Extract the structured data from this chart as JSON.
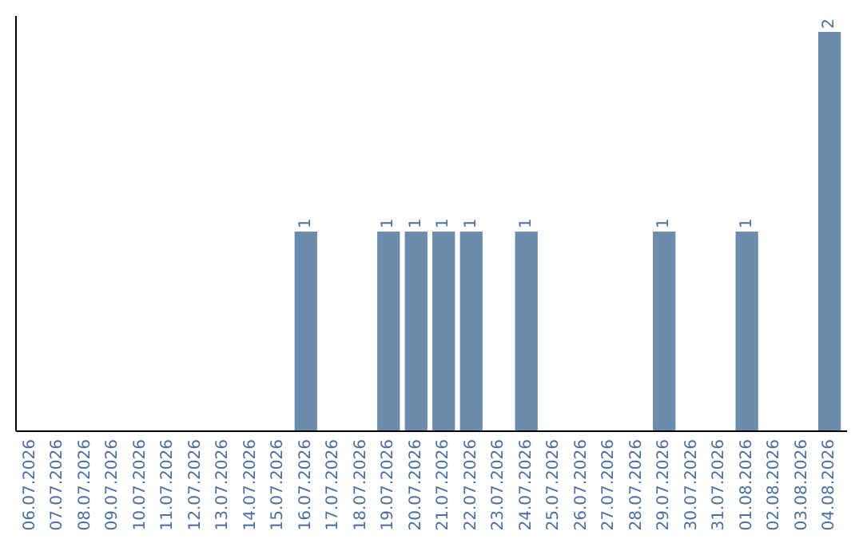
{
  "chart_data": {
    "type": "bar",
    "categories": [
      "06.07.2026",
      "07.07.2026",
      "08.07.2026",
      "09.07.2026",
      "10.07.2026",
      "11.07.2026",
      "12.07.2026",
      "13.07.2026",
      "14.07.2026",
      "15.07.2026",
      "16.07.2026",
      "17.07.2026",
      "18.07.2026",
      "19.07.2026",
      "20.07.2026",
      "21.07.2026",
      "22.07.2026",
      "23.07.2026",
      "24.07.2026",
      "25.07.2026",
      "26.07.2026",
      "27.07.2026",
      "28.07.2026",
      "29.07.2026",
      "30.07.2026",
      "31.07.2026",
      "01.08.2026",
      "02.08.2026",
      "03.08.2026",
      "04.08.2026"
    ],
    "values": [
      0,
      0,
      0,
      0,
      0,
      0,
      0,
      0,
      0,
      0,
      1,
      0,
      0,
      1,
      1,
      1,
      1,
      0,
      1,
      0,
      0,
      0,
      0,
      1,
      0,
      0,
      1,
      0,
      0,
      2
    ],
    "value_labels": [
      null,
      null,
      null,
      null,
      null,
      null,
      null,
      null,
      null,
      null,
      "1",
      null,
      null,
      "1",
      "1",
      "1",
      "1",
      null,
      "1",
      null,
      null,
      null,
      null,
      "1",
      null,
      null,
      "1",
      null,
      null,
      "2"
    ],
    "color": "#6b8cad"
  }
}
